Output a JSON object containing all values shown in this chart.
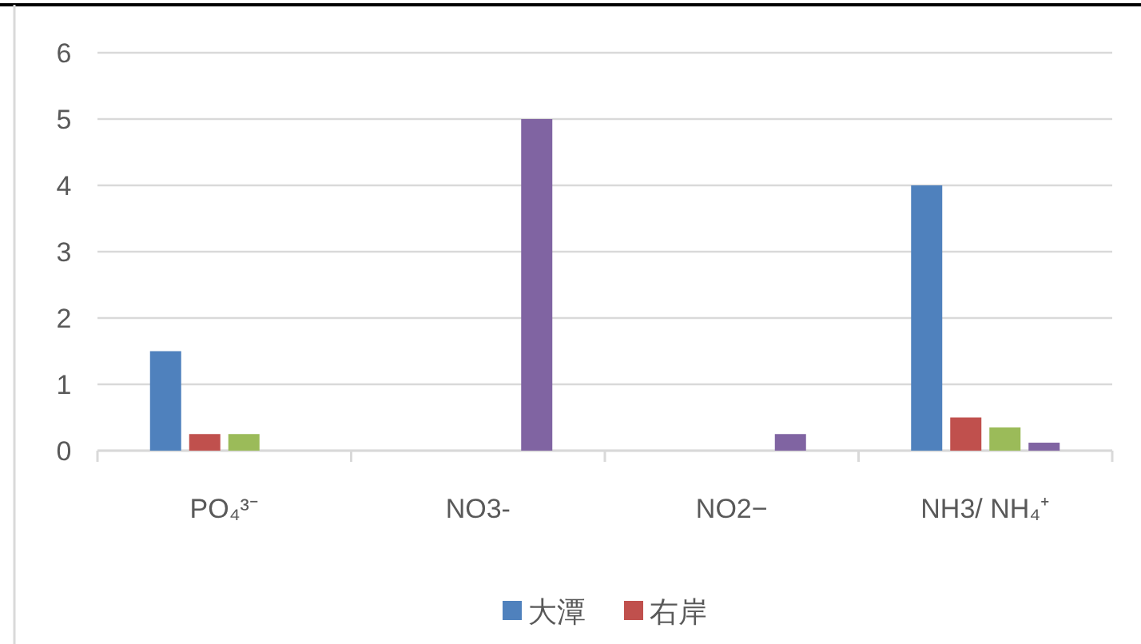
{
  "chart_data": {
    "type": "bar",
    "categories": [
      "PO₄³⁻",
      "NO3-",
      "NO2−",
      "NH3/ NH₄⁺"
    ],
    "series": [
      {
        "name": "大潭",
        "color": "#4f81bd",
        "values": [
          1.5,
          0,
          0,
          4
        ]
      },
      {
        "name": "右岸",
        "color": "#c0504d",
        "values": [
          0.25,
          0,
          0,
          0.5
        ]
      },
      {
        "color": "#9bbb59",
        "values": [
          0.25,
          0,
          0,
          0.35
        ]
      },
      {
        "color": "#8064a2",
        "values": [
          0,
          5,
          0.25,
          0.12
        ]
      }
    ],
    "ylim": [
      0,
      6
    ],
    "yticks": [
      0,
      1,
      2,
      3,
      4,
      5,
      6
    ],
    "grid": "y",
    "legend": "bottom"
  }
}
